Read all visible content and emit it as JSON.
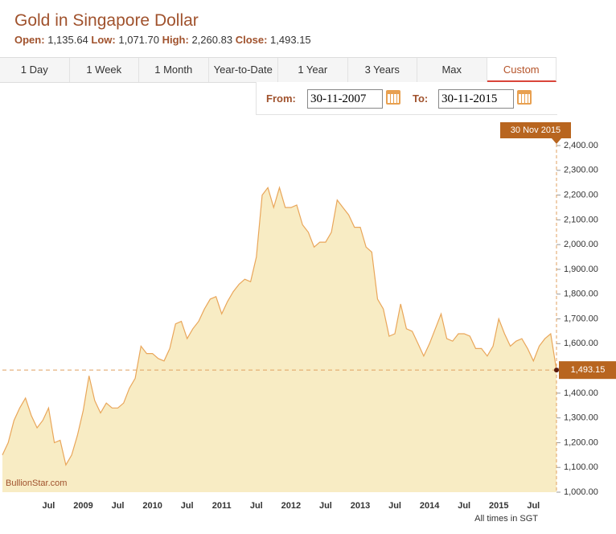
{
  "header": {
    "title": "Gold in Singapore Dollar",
    "stats": [
      {
        "label": "Open:",
        "value": "1,135.64"
      },
      {
        "label": "Low:",
        "value": "1,071.70"
      },
      {
        "label": "High:",
        "value": "2,260.83"
      },
      {
        "label": "Close:",
        "value": "1,493.15"
      }
    ]
  },
  "tabs": {
    "items": [
      "1 Day",
      "1 Week",
      "1 Month",
      "Year-to-Date",
      "1 Year",
      "3 Years",
      "Max",
      "Custom"
    ],
    "active": 7
  },
  "range": {
    "from_label": "From:",
    "from": "30-11-2007",
    "to_label": "To:",
    "to": "30-11-2015"
  },
  "watermark": "BullionStar.com",
  "footnote": "All times in SGT",
  "chart_data": {
    "type": "area",
    "x": [
      "2007-11",
      "2007-12",
      "2008-01",
      "2008-02",
      "2008-03",
      "2008-04",
      "2008-05",
      "2008-06",
      "2008-07",
      "2008-08",
      "2008-09",
      "2008-10",
      "2008-11",
      "2008-12",
      "2009-01",
      "2009-02",
      "2009-03",
      "2009-04",
      "2009-05",
      "2009-06",
      "2009-07",
      "2009-08",
      "2009-09",
      "2009-10",
      "2009-11",
      "2009-12",
      "2010-01",
      "2010-02",
      "2010-03",
      "2010-04",
      "2010-05",
      "2010-06",
      "2010-07",
      "2010-08",
      "2010-09",
      "2010-10",
      "2010-11",
      "2010-12",
      "2011-01",
      "2011-02",
      "2011-03",
      "2011-04",
      "2011-05",
      "2011-06",
      "2011-07",
      "2011-08",
      "2011-09",
      "2011-10",
      "2011-11",
      "2011-12",
      "2012-01",
      "2012-02",
      "2012-03",
      "2012-04",
      "2012-05",
      "2012-06",
      "2012-07",
      "2012-08",
      "2012-09",
      "2012-10",
      "2012-11",
      "2012-12",
      "2013-01",
      "2013-02",
      "2013-03",
      "2013-04",
      "2013-05",
      "2013-06",
      "2013-07",
      "2013-08",
      "2013-09",
      "2013-10",
      "2013-11",
      "2013-12",
      "2014-01",
      "2014-02",
      "2014-03",
      "2014-04",
      "2014-05",
      "2014-06",
      "2014-07",
      "2014-08",
      "2014-09",
      "2014-10",
      "2014-11",
      "2014-12",
      "2015-01",
      "2015-02",
      "2015-03",
      "2015-04",
      "2015-05",
      "2015-06",
      "2015-07",
      "2015-08",
      "2015-09",
      "2015-10",
      "2015-11"
    ],
    "values": [
      1150,
      1200,
      1290,
      1340,
      1380,
      1310,
      1260,
      1290,
      1340,
      1200,
      1210,
      1110,
      1150,
      1230,
      1330,
      1470,
      1370,
      1320,
      1360,
      1340,
      1340,
      1360,
      1420,
      1460,
      1590,
      1560,
      1560,
      1540,
      1530,
      1580,
      1680,
      1690,
      1620,
      1660,
      1690,
      1740,
      1780,
      1790,
      1720,
      1770,
      1810,
      1840,
      1860,
      1850,
      1950,
      2200,
      2230,
      2150,
      2230,
      2150,
      2150,
      2160,
      2080,
      2050,
      1990,
      2010,
      2010,
      2050,
      2180,
      2150,
      2120,
      2070,
      2070,
      1990,
      1970,
      1780,
      1740,
      1630,
      1640,
      1760,
      1660,
      1650,
      1600,
      1550,
      1600,
      1660,
      1720,
      1620,
      1610,
      1640,
      1640,
      1630,
      1580,
      1580,
      1550,
      1590,
      1700,
      1640,
      1590,
      1610,
      1620,
      1580,
      1530,
      1590,
      1620,
      1640,
      1493.15
    ],
    "color": "#e9a65a",
    "fill": "#f8ecc4",
    "xlim": [
      "2007-11",
      "2015-11"
    ],
    "xticks": [
      {
        "value": "2008-07",
        "label": "Jul"
      },
      {
        "value": "2009-01",
        "label": "2009"
      },
      {
        "value": "2009-07",
        "label": "Jul"
      },
      {
        "value": "2010-01",
        "label": "2010"
      },
      {
        "value": "2010-07",
        "label": "Jul"
      },
      {
        "value": "2011-01",
        "label": "2011"
      },
      {
        "value": "2011-07",
        "label": "Jul"
      },
      {
        "value": "2012-01",
        "label": "2012"
      },
      {
        "value": "2012-07",
        "label": "Jul"
      },
      {
        "value": "2013-01",
        "label": "2013"
      },
      {
        "value": "2013-07",
        "label": "Jul"
      },
      {
        "value": "2014-01",
        "label": "2014"
      },
      {
        "value": "2014-07",
        "label": "Jul"
      },
      {
        "value": "2015-01",
        "label": "2015"
      },
      {
        "value": "2015-07",
        "label": "Jul"
      }
    ],
    "ylim": [
      1000,
      2400
    ],
    "yticks": [
      {
        "value": 1000,
        "label": "1,000.00"
      },
      {
        "value": 1100,
        "label": "1,100.00"
      },
      {
        "value": 1200,
        "label": "1,200.00"
      },
      {
        "value": 1300,
        "label": "1,300.00"
      },
      {
        "value": 1400,
        "label": "1,400.00"
      },
      {
        "value": 1500,
        "label": "1,500.00"
      },
      {
        "value": 1600,
        "label": "1,600.00"
      },
      {
        "value": 1700,
        "label": "1,700.00"
      },
      {
        "value": 1800,
        "label": "1,800.00"
      },
      {
        "value": 1900,
        "label": "1,900.00"
      },
      {
        "value": 2000,
        "label": "2,000.00"
      },
      {
        "value": 2100,
        "label": "2,100.00"
      },
      {
        "value": 2200,
        "label": "2,200.00"
      },
      {
        "value": 2300,
        "label": "2,300.00"
      },
      {
        "value": 2400,
        "label": "2,400.00"
      }
    ],
    "close_marker": {
      "date_label": "30 Nov 2015",
      "value": 1493.15,
      "value_label": "1,493.15"
    }
  }
}
